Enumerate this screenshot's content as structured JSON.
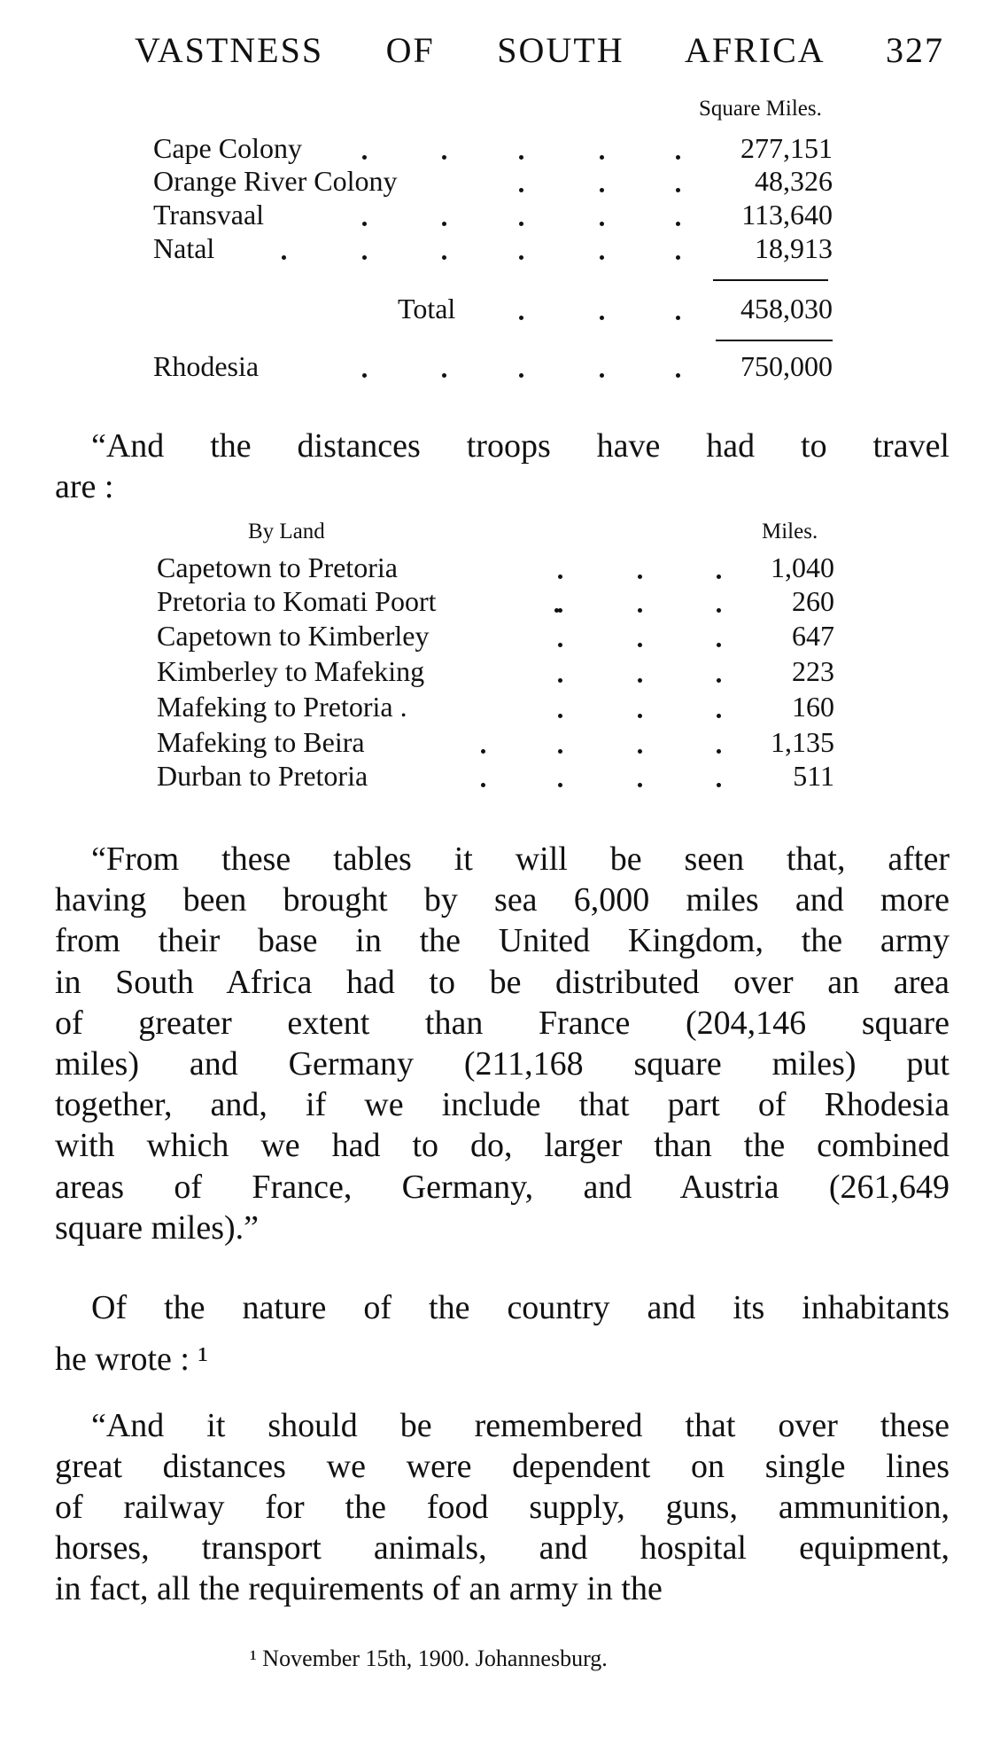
{
  "header": {
    "title": "VASTNESS OF SOUTH AFRICA",
    "page_number": "327"
  },
  "areas_table": {
    "unit_header": "Square Miles.",
    "rows": [
      {
        "label": "Cape Colony",
        "value": "277,151"
      },
      {
        "label": "Orange River Colony",
        "value": "48,326"
      },
      {
        "label": "Transvaal",
        "value": "113,640"
      },
      {
        "label": "Natal",
        "value": "18,913"
      }
    ],
    "total_label": "Total",
    "total_value": "458,030",
    "extra_label": "Rhodesia",
    "extra_value": "750,000"
  },
  "intro_paragraph": [
    "“And the distances troops have had to travel",
    "are :"
  ],
  "distances_table": {
    "label_header": "By Land",
    "unit_header": "Miles.",
    "rows": [
      {
        "label": "Capetown to Pretoria",
        "value": "1,040"
      },
      {
        "label": "Pretoria to Komati Poort",
        "value": "260"
      },
      {
        "label": "Capetown to Kimberley",
        "value": "647"
      },
      {
        "label": "Kimberley to Mafeking",
        "value": "223"
      },
      {
        "label": "Mafeking to Pretoria .",
        "value": "160"
      },
      {
        "label": "Mafeking to Beira",
        "value": "1,135"
      },
      {
        "label": "Durban to Pretoria",
        "value": "511"
      }
    ]
  },
  "paragraph_1": [
    "“From these tables it will be seen that, after",
    "having been brought by sea 6,000 miles and more",
    "from their base in the United Kingdom, the army",
    "in South Africa had to be distributed over an area",
    "of greater extent than France (204,146 square",
    "miles) and Germany (211,168 square miles) put",
    "together, and, if we include that part of Rhodesia",
    "with which we had to do, larger than the combined",
    "areas of France, Germany, and Austria (261,649",
    "square miles).”"
  ],
  "paragraph_2": [
    "Of the nature of the country and its inhabitants",
    "he wrote : ¹"
  ],
  "paragraph_3": [
    "“And it should be remembered that over these",
    "great distances we were dependent on single lines",
    "of railway for the food supply, guns, ammunition,",
    "horses, transport animals, and hospital equipment,",
    "in fact, all the requirements of an army in the"
  ],
  "footnote": "¹ November 15th, 1900.   Johannesburg."
}
